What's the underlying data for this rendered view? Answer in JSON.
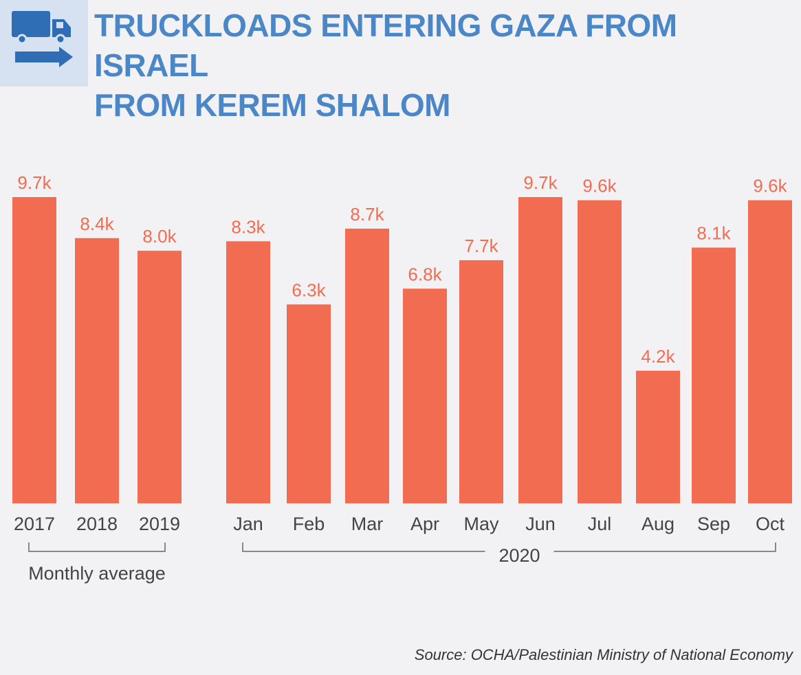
{
  "header": {
    "title_line1": "TRUCKLOADS ENTERING GAZA FROM ISRAEL",
    "title_line2": "FROM KEREM SHALOM",
    "icon": "truck-arrow-icon"
  },
  "colors": {
    "bar": "#f26c52",
    "value_label": "#f26c52",
    "title": "#4b86c6",
    "icon": "#2f6db5",
    "icon_background": "#d6e2f2",
    "axis_text": "#444444",
    "bracket": "#888888",
    "background": "#f2f2f4"
  },
  "chart_data": {
    "type": "bar",
    "value_unit": "k truckloads",
    "ylim": [
      0,
      9.7
    ],
    "grid": false,
    "groups": [
      {
        "label": "Monthly average",
        "categories": [
          "2017",
          "2018",
          "2019"
        ],
        "values": [
          9.7,
          8.4,
          8.0
        ],
        "value_labels": [
          "9.7k",
          "8.4k",
          "8.0k"
        ]
      },
      {
        "label": "2020",
        "categories": [
          "Jan",
          "Feb",
          "Mar",
          "Apr",
          "May",
          "Jun",
          "Jul",
          "Aug",
          "Sep",
          "Oct"
        ],
        "values": [
          8.3,
          6.3,
          8.7,
          6.8,
          7.7,
          9.7,
          9.6,
          4.2,
          8.1,
          9.6
        ],
        "value_labels": [
          "8.3k",
          "6.3k",
          "8.7k",
          "6.8k",
          "7.7k",
          "9.7k",
          "9.6k",
          "4.2k",
          "8.1k",
          "9.6k"
        ]
      }
    ]
  },
  "footer": {
    "source": "Source: OCHA/Palestinian Ministry of National Economy"
  }
}
